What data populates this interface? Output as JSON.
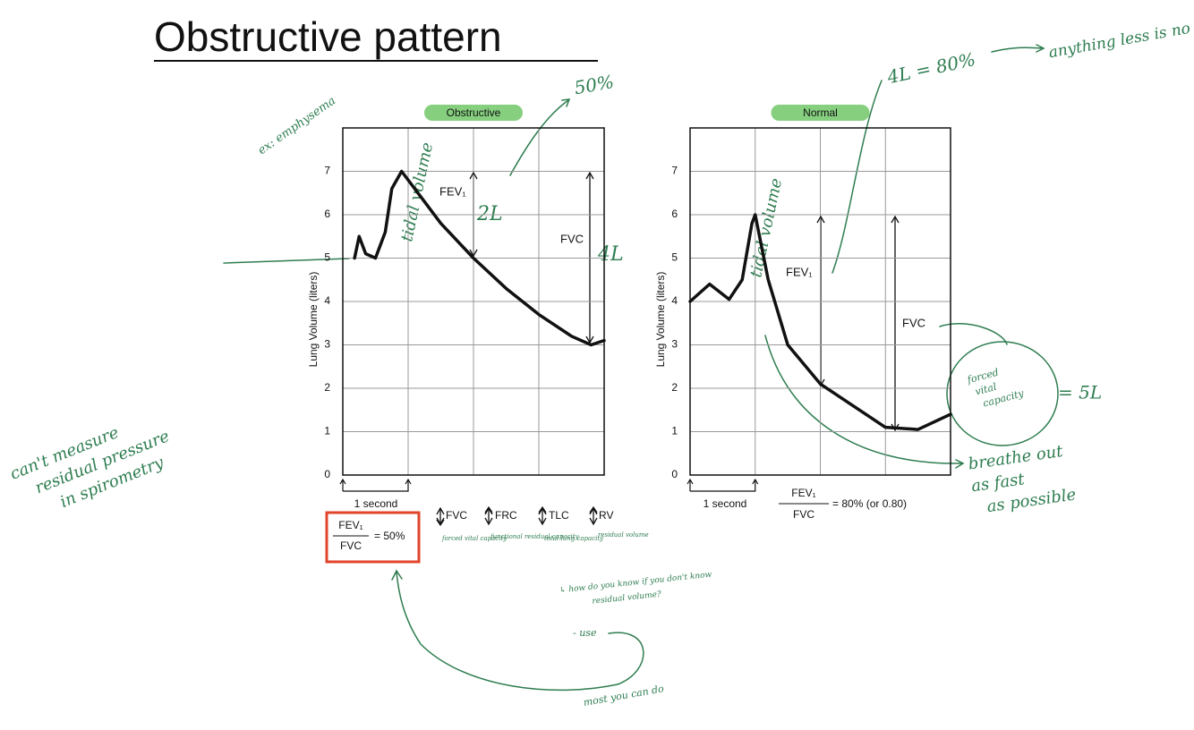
{
  "title": "Obstructive pattern",
  "chart_data": [
    {
      "type": "line",
      "title": "Obstructive",
      "ylabel": "Lung Volume (liters)",
      "x": [
        0.18,
        0.25,
        0.35,
        0.5,
        0.65,
        0.75,
        0.9,
        1.2,
        1.5,
        2.0,
        2.5,
        3.0,
        3.5,
        3.8,
        4.0
      ],
      "values": [
        5.0,
        5.5,
        5.1,
        5.0,
        5.6,
        6.6,
        7.0,
        6.4,
        5.8,
        5.0,
        4.3,
        3.7,
        3.2,
        3.0,
        3.1
      ],
      "color": "#111111",
      "xlim": [
        0,
        4
      ],
      "ylim": [
        0,
        8
      ],
      "yticks": [
        0,
        1,
        2,
        3,
        4,
        5,
        6,
        7
      ],
      "grid": true,
      "fev1_label": "FEV₁",
      "fvc_label": "FVC",
      "time_label": "1 second",
      "ratio": {
        "numerator": "FEV₁",
        "denominator": "FVC",
        "result": "= 50%"
      },
      "indicators": [
        {
          "label": "FVC",
          "note": "forced vital capacity"
        },
        {
          "label": "FRC",
          "note": "functional residual capacity"
        },
        {
          "label": "TLC",
          "note": "total lung capacity"
        },
        {
          "label": "RV",
          "note": "residual volume"
        }
      ]
    },
    {
      "type": "line",
      "title": "Normal",
      "ylabel": "Lung Volume (liters)",
      "x": [
        0,
        0.3,
        0.6,
        0.8,
        0.95,
        1.0,
        1.2,
        1.5,
        2.0,
        2.5,
        3.0,
        3.5,
        4.0
      ],
      "values": [
        4.0,
        4.4,
        4.05,
        4.5,
        5.8,
        6.0,
        4.5,
        3.0,
        2.1,
        1.6,
        1.1,
        1.05,
        1.4
      ],
      "color": "#111111",
      "xlim": [
        0,
        4
      ],
      "ylim": [
        0,
        8
      ],
      "yticks": [
        0,
        1,
        2,
        3,
        4,
        5,
        6,
        7
      ],
      "grid": true,
      "fev1_label": "FEV₁",
      "fvc_label": "FVC",
      "time_label": "1 second",
      "ratio": {
        "numerator": "FEV₁",
        "denominator": "FVC",
        "result": "= 80% (or 0.80)"
      }
    }
  ],
  "notes": {
    "example": "ex: emphysema",
    "tidal_left": "tidal volume",
    "tidal_right": "tidal volume",
    "percent": "50%",
    "two_l": "2L",
    "four_l": "4L",
    "ratio_note": "4L = 80%",
    "no_good": "anything less is no good",
    "cant_measure": [
      "can't measure",
      "residual pressure",
      "in spirometry"
    ],
    "fvc_circle": [
      "forced",
      "vital",
      "capacity"
    ],
    "five_l": "= 5L",
    "breathe": [
      "breathe out",
      "as fast",
      "as possible"
    ],
    "question": [
      "↳ how do you know if you don't know",
      "residual volume?"
    ],
    "use": "- use",
    "most": "most you can do"
  }
}
